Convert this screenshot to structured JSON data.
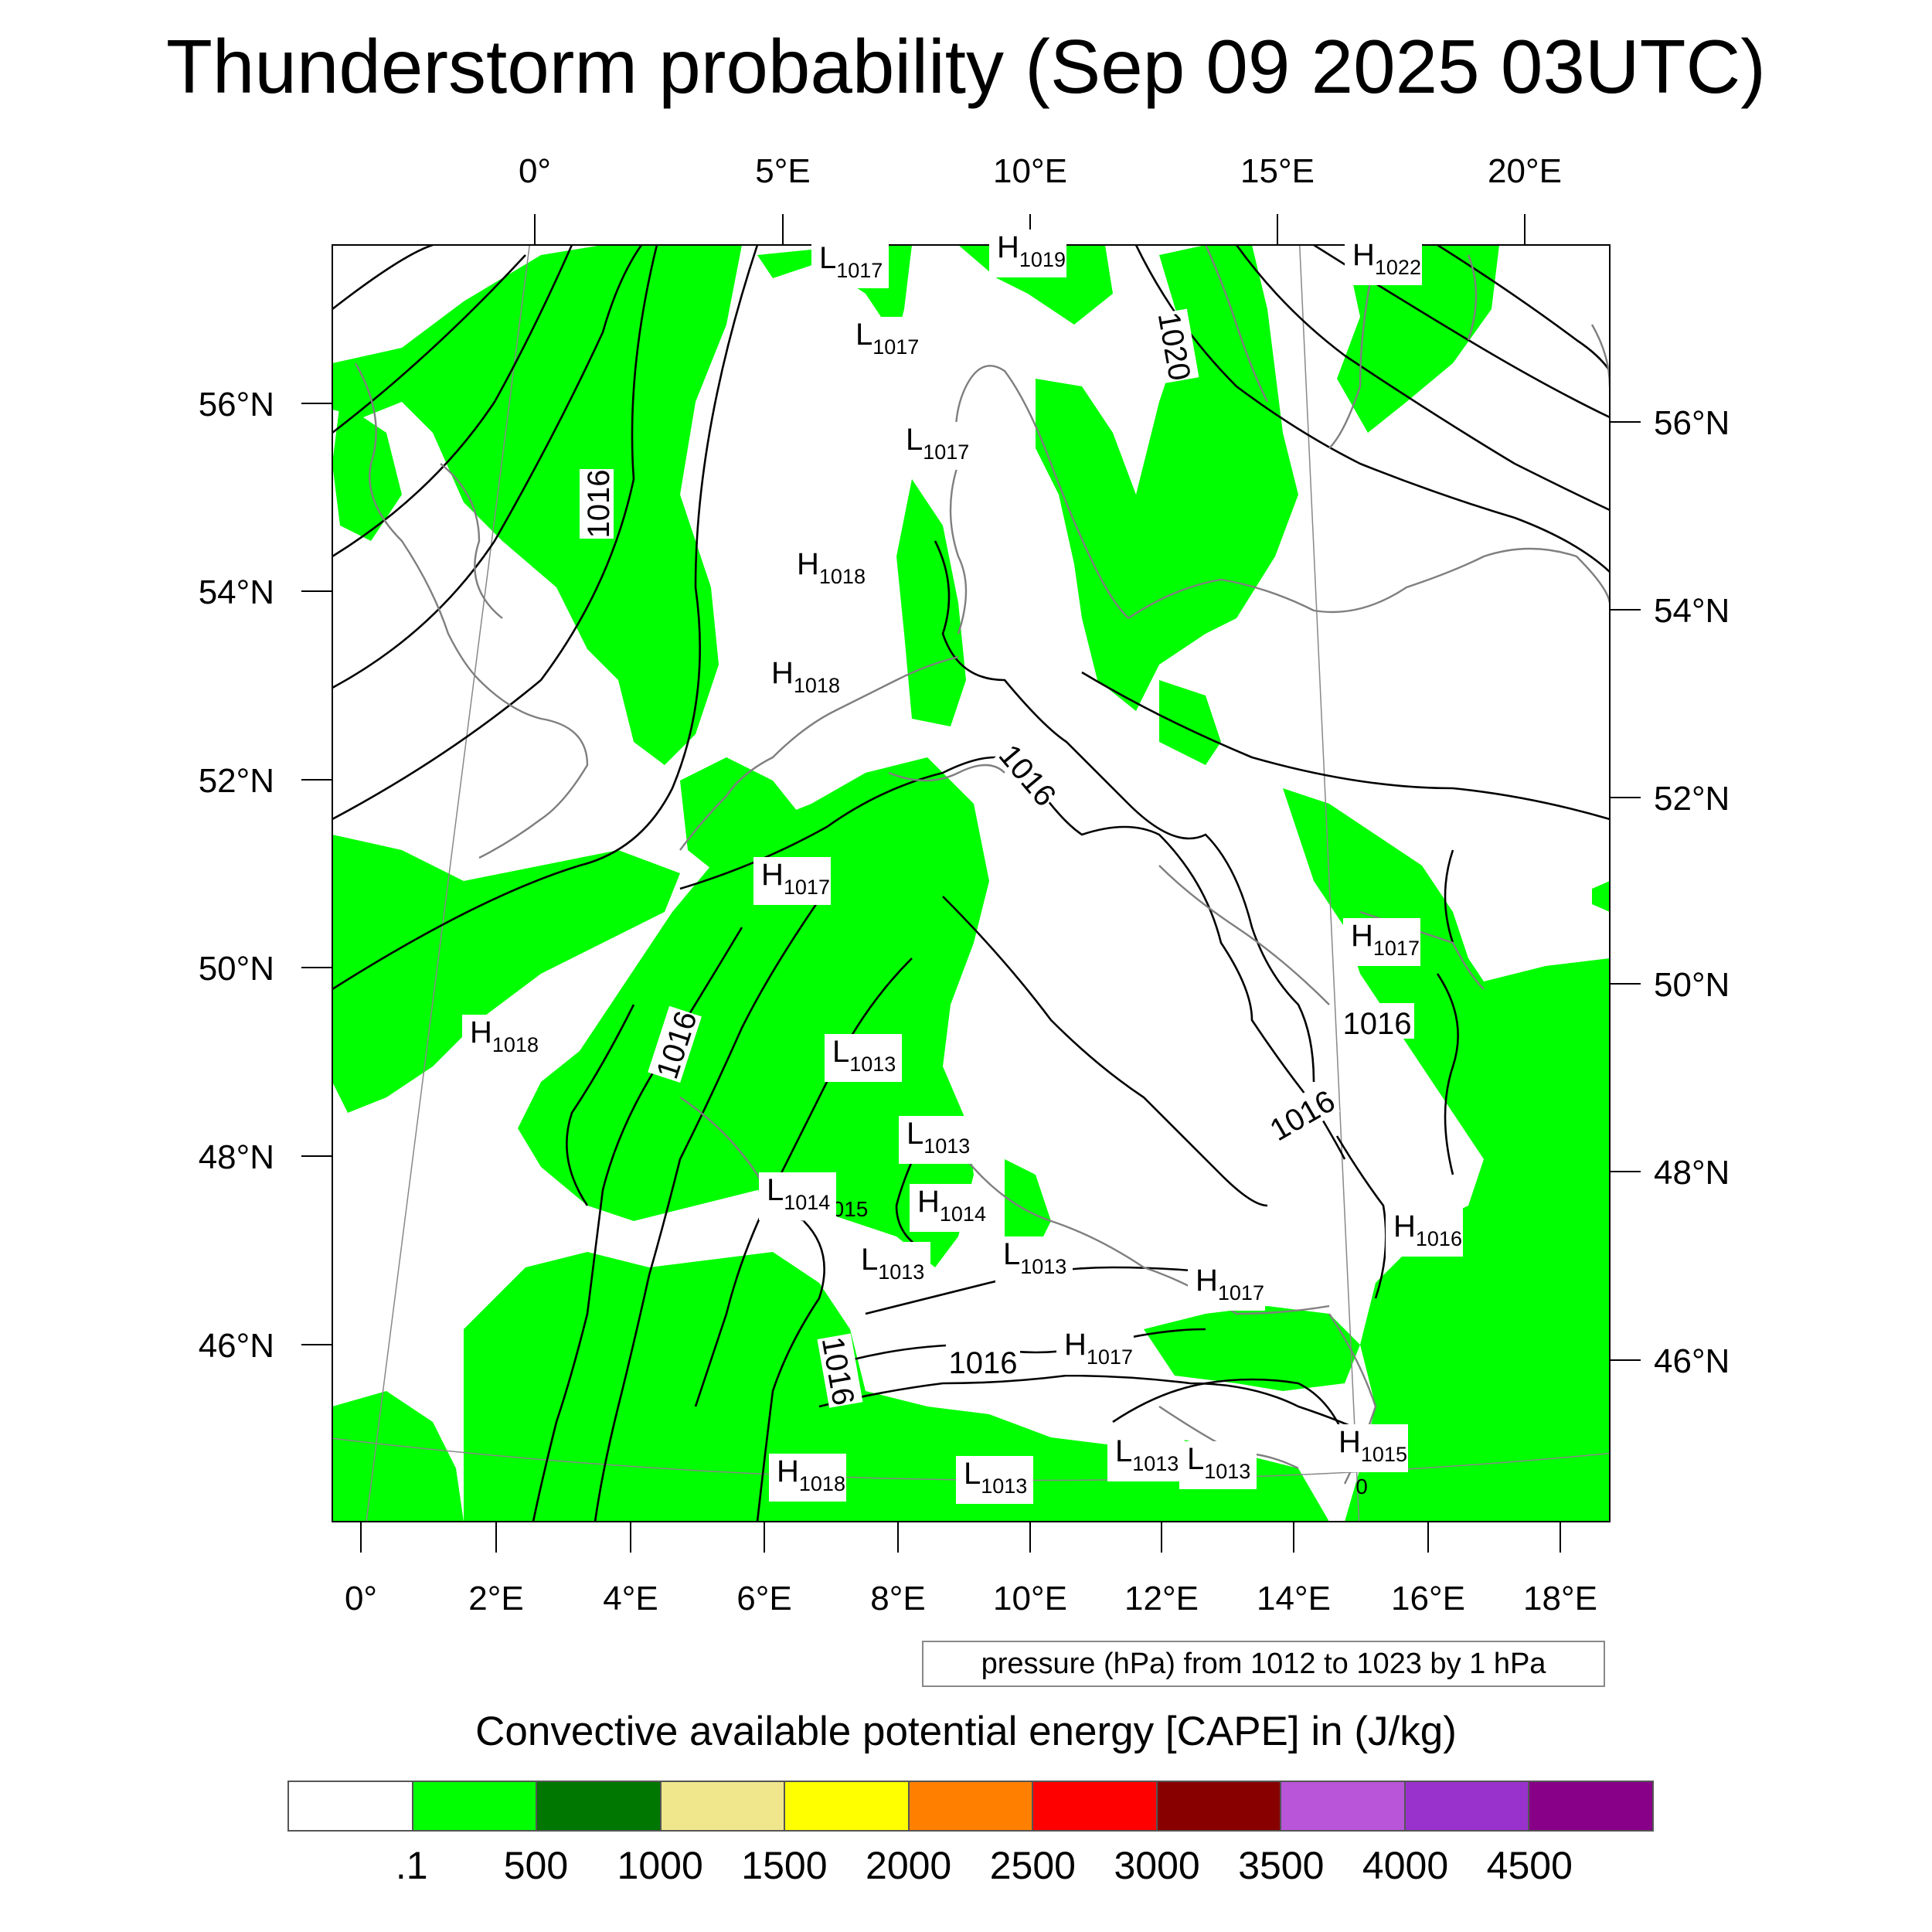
{
  "title": "Thunderstorm probability (Sep 09 2025 03UTC)",
  "top_lon_labels": [
    "0°",
    "5°E",
    "10°E",
    "15°E",
    "20°E"
  ],
  "bottom_lon_labels": [
    "0°",
    "2°E",
    "4°E",
    "6°E",
    "8°E",
    "10°E",
    "12°E",
    "14°E",
    "16°E",
    "18°E"
  ],
  "left_lat_labels": [
    "56°N",
    "54°N",
    "52°N",
    "50°N",
    "48°N",
    "46°N"
  ],
  "right_lat_labels": [
    "56°N",
    "54°N",
    "52°N",
    "50°N",
    "48°N",
    "46°N"
  ],
  "pressure_note": "pressure (hPa) from 1012 to 1023 by 1 hPa",
  "legend": {
    "title": "Convective available potential energy [CAPE] in (J/kg)",
    "colors": [
      "#ffffff",
      "#00ff00",
      "#007700",
      "#f0e68c",
      "#ffff00",
      "#ff8000",
      "#ff0000",
      "#880000",
      "#b855d8",
      "#9932cc",
      "#880088"
    ],
    "labels": [
      ".1",
      "500",
      "1000",
      "1500",
      "2000",
      "2500",
      "3000",
      "3500",
      "4000",
      "4500"
    ]
  },
  "cape_fill_color": "#00ff00",
  "pressure_centers": [
    {
      "type": "L",
      "value": "1017"
    },
    {
      "type": "H",
      "value": "1019"
    },
    {
      "type": "H",
      "value": "1022"
    },
    {
      "type": "L",
      "value": "1017"
    },
    {
      "type": "L",
      "value": "1017"
    },
    {
      "type": "H",
      "value": "1018"
    },
    {
      "type": "H",
      "value": "1018"
    },
    {
      "type": "H",
      "value": "1017"
    },
    {
      "type": "H",
      "value": "1017"
    },
    {
      "type": "H",
      "value": "1018"
    },
    {
      "type": "L",
      "value": "1013"
    },
    {
      "type": "L",
      "value": "1013"
    },
    {
      "type": "L",
      "value": "1014"
    },
    {
      "type": "H",
      "value": "1014"
    },
    {
      "type": "L",
      "value": "1013"
    },
    {
      "type": "L",
      "value": "1013"
    },
    {
      "type": "H",
      "value": "1017"
    },
    {
      "type": "H",
      "value": "1016"
    },
    {
      "type": "H",
      "value": "1017"
    },
    {
      "type": "L",
      "value": "1013"
    },
    {
      "type": "L",
      "value": "1013"
    },
    {
      "type": "H",
      "value": "1015"
    },
    {
      "type": "H",
      "value": "1018"
    },
    {
      "type": "L",
      "value": "1013"
    }
  ],
  "contour_labels": [
    "1016",
    "1020",
    "1016",
    "1016",
    "1016",
    "1016",
    "1016",
    "1016",
    "015",
    "0"
  ]
}
